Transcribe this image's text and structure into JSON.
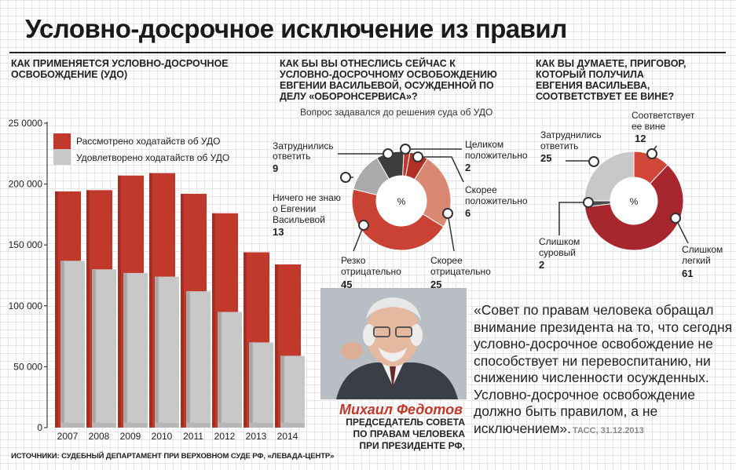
{
  "title": "Условно-досрочное исключение из правил",
  "bar_section": {
    "header": "КАК ПРИМЕНЯЕТСЯ УСЛОВНО-ДОСРОЧНОЕ ОСВОБОЖДЕНИЕ (УДО)"
  },
  "donut1": {
    "header": "КАК БЫ ВЫ ОТНЕСЛИСЬ СЕЙЧАС К УСЛОВНО-ДОСРОЧНОМУ ОСВОБОЖДЕНИЮ ЕВГЕНИИ ВАСИЛЬЕВОЙ, ОСУЖДЕННОЙ ПО ДЕЛУ «ОБОРОНСЕРВИСА»?",
    "note": "Вопрос задавался до решения суда об УДО"
  },
  "donut2": {
    "header": "КАК ВЫ ДУМАЕТЕ, ПРИГОВОР, КОТОРЫЙ ПОЛУЧИЛА ЕВГЕНИЯ ВАСИЛЬЕВА, СООТВЕТСТВУЕТ ЕЕ ВИНЕ?"
  },
  "chart_data": [
    {
      "type": "bar",
      "categories": [
        "2007",
        "2008",
        "2009",
        "2010",
        "2011",
        "2012",
        "2013",
        "2014"
      ],
      "series": [
        {
          "name": "Рассмотрено ходатайств об УДО",
          "values": [
            194000,
            195000,
            207000,
            209000,
            192000,
            176000,
            144000,
            134000
          ]
        },
        {
          "name": "Удовлетворено ходатайств об УДО",
          "values": [
            137000,
            130000,
            127000,
            124000,
            112000,
            95000,
            70000,
            59000
          ]
        }
      ],
      "ylim": [
        0,
        250000
      ],
      "yticks": [
        "0",
        "50 000",
        "100 000",
        "150 000",
        "200 000",
        "25 0000"
      ],
      "legend": "top-left",
      "colors": [
        "#c0392b",
        "#c8c8c8"
      ]
    },
    {
      "type": "pie",
      "center_label": "%",
      "slices": [
        {
          "label": "Целиком положительно",
          "value": 2,
          "color": "#c0392b"
        },
        {
          "label": "Скорее положительно",
          "value": 6,
          "color": "#b03028"
        },
        {
          "label": "Скорее отрицательно",
          "value": 25,
          "color": "#d88873"
        },
        {
          "label": "Резко отрицательно",
          "value": 45,
          "color": "#c94234"
        },
        {
          "label": "Ничего не знаю о Евгении Васильевой",
          "value": 13,
          "color": "#aaaaaa"
        },
        {
          "label": "Затруднились ответить",
          "value": 9,
          "color": "#3d3d3d"
        }
      ],
      "display_values": [
        "2",
        "6",
        "25",
        "45",
        "13",
        "9"
      ]
    },
    {
      "type": "pie",
      "center_label": "%",
      "slices": [
        {
          "label": "Соответствует ее вине",
          "value": 12,
          "color": "#d0473a"
        },
        {
          "label": "Слишком легкий",
          "value": 61,
          "color": "#a8262d"
        },
        {
          "label": "Слишком суровый",
          "value": 2,
          "color": "#4a4a4a"
        },
        {
          "label": "Затруднились ответить",
          "value": 25,
          "color": "#c8c8c8"
        }
      ],
      "display_values": [
        "12",
        "61",
        "2",
        "25"
      ]
    }
  ],
  "labels1": {
    "zatr": [
      "Затруднились",
      "ответить"
    ],
    "nichego": [
      "Ничего не знаю",
      "о Евгении",
      "Васильевой"
    ],
    "rezko": [
      "Резко",
      "отрицательно"
    ],
    "skoree_otr": [
      "Скорее",
      "отрицательно"
    ],
    "skoree_pol": [
      "Скорее",
      "положительно"
    ],
    "celikom": [
      "Целиком",
      "положительно"
    ]
  },
  "labels2": {
    "sootv": [
      "Соответствует",
      "ее вине"
    ],
    "zatr": [
      "Затруднились",
      "ответить"
    ],
    "surovy": [
      "Слишком",
      "суровый"
    ],
    "legkiy": [
      "Слишком",
      "легкий"
    ]
  },
  "person": {
    "name": "Михаил Федотов",
    "role": "ПРЕДСЕДАТЕЛЬ СОВЕТА ПО ПРАВАМ ЧЕЛОВЕКА ПРИ ПРЕЗИДЕНТЕ РФ,",
    "role_lines": [
      "ПРЕДСЕДАТЕЛЬ СОВЕТА",
      "ПО ПРАВАМ ЧЕЛОВЕКА",
      "ПРИ ПРЕЗИДЕНТЕ РФ,"
    ]
  },
  "quote": {
    "text": "«Совет по правам человека обращал внимание президента на то, что сегодня условно-досрочное освобождение не способствует ни перевоспитанию, ни снижению численности осужденных. Условно-досрочное освобождение должно быть правилом, а не исключением».",
    "credit": "ТАСС, 31.12.2013"
  },
  "source": "ИСТОЧНИКИ: СУДЕБНЫЙ ДЕПАРТАМЕНТ ПРИ ВЕРХОВНОМ СУДЕ РФ, «ЛЕВАДА-ЦЕНТР»"
}
